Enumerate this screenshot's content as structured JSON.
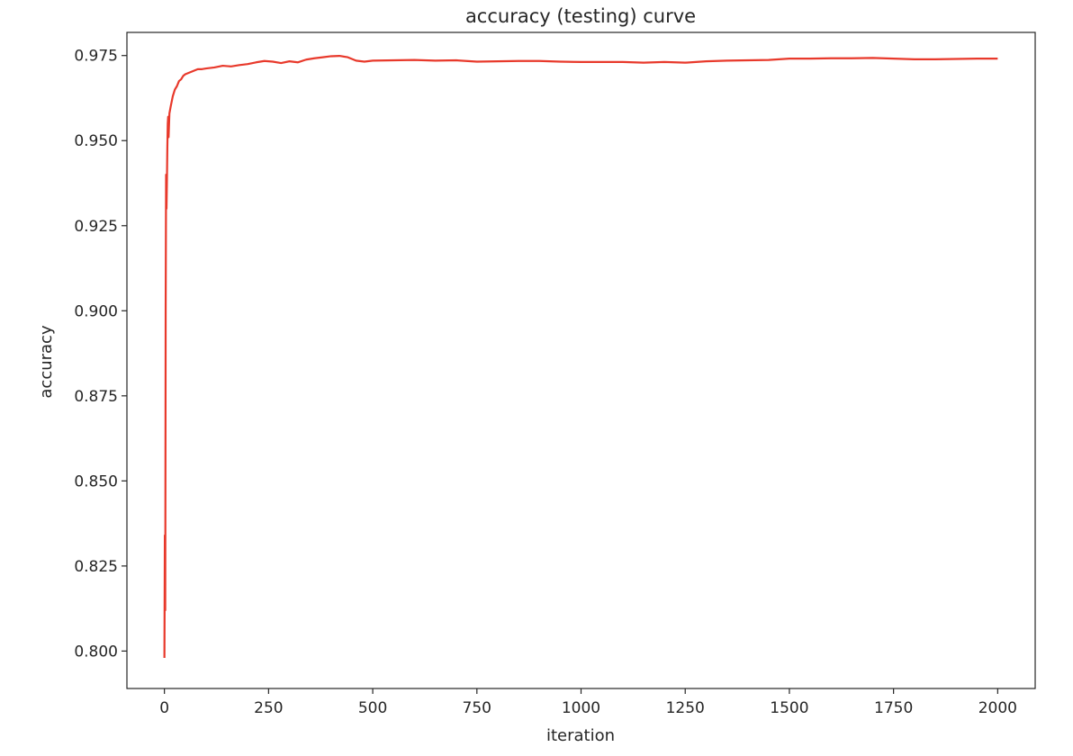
{
  "chart_data": {
    "type": "line",
    "title": "accuracy (testing) curve",
    "xlabel": "iteration",
    "ylabel": "accuracy",
    "xlim": [
      -90,
      2090
    ],
    "ylim": [
      0.789,
      0.9818
    ],
    "xticks": [
      0,
      250,
      500,
      750,
      1000,
      1250,
      1500,
      1750,
      2000
    ],
    "xtick_labels": [
      "0",
      "250",
      "500",
      "750",
      "1000",
      "1250",
      "1500",
      "1750",
      "2000"
    ],
    "yticks": [
      0.8,
      0.825,
      0.85,
      0.875,
      0.9,
      0.925,
      0.95,
      0.975
    ],
    "ytick_labels": [
      "0.800",
      "0.825",
      "0.850",
      "0.875",
      "0.900",
      "0.925",
      "0.950",
      "0.975"
    ],
    "grid": false,
    "series": [
      {
        "color": "#e8392b",
        "x": [
          0,
          1,
          2,
          3,
          4,
          5,
          6,
          7,
          8,
          9,
          10,
          12,
          15,
          20,
          25,
          30,
          35,
          40,
          45,
          50,
          60,
          70,
          80,
          90,
          100,
          120,
          140,
          160,
          180,
          200,
          220,
          240,
          260,
          280,
          300,
          320,
          340,
          360,
          380,
          400,
          420,
          440,
          460,
          480,
          500,
          550,
          600,
          650,
          700,
          750,
          800,
          850,
          900,
          950,
          1000,
          1050,
          1100,
          1150,
          1200,
          1250,
          1300,
          1350,
          1400,
          1450,
          1500,
          1550,
          1600,
          1650,
          1700,
          1750,
          1800,
          1850,
          1900,
          1950,
          2000
        ],
        "y": [
          0.798,
          0.834,
          0.812,
          0.9,
          0.94,
          0.93,
          0.938,
          0.948,
          0.955,
          0.957,
          0.951,
          0.958,
          0.96,
          0.963,
          0.965,
          0.966,
          0.9675,
          0.968,
          0.969,
          0.9695,
          0.97,
          0.9705,
          0.971,
          0.971,
          0.9712,
          0.9715,
          0.972,
          0.9718,
          0.9722,
          0.9725,
          0.973,
          0.9734,
          0.9732,
          0.9728,
          0.9733,
          0.973,
          0.9738,
          0.9742,
          0.9745,
          0.9748,
          0.9749,
          0.9745,
          0.9735,
          0.9732,
          0.9735,
          0.9736,
          0.9737,
          0.9735,
          0.9736,
          0.9732,
          0.9733,
          0.9734,
          0.9734,
          0.9732,
          0.9731,
          0.9731,
          0.9731,
          0.9729,
          0.9731,
          0.9729,
          0.9733,
          0.9735,
          0.9736,
          0.9737,
          0.9741,
          0.9741,
          0.9742,
          0.9742,
          0.9743,
          0.9741,
          0.9739,
          0.9739,
          0.974,
          0.9741,
          0.9741
        ]
      }
    ]
  }
}
